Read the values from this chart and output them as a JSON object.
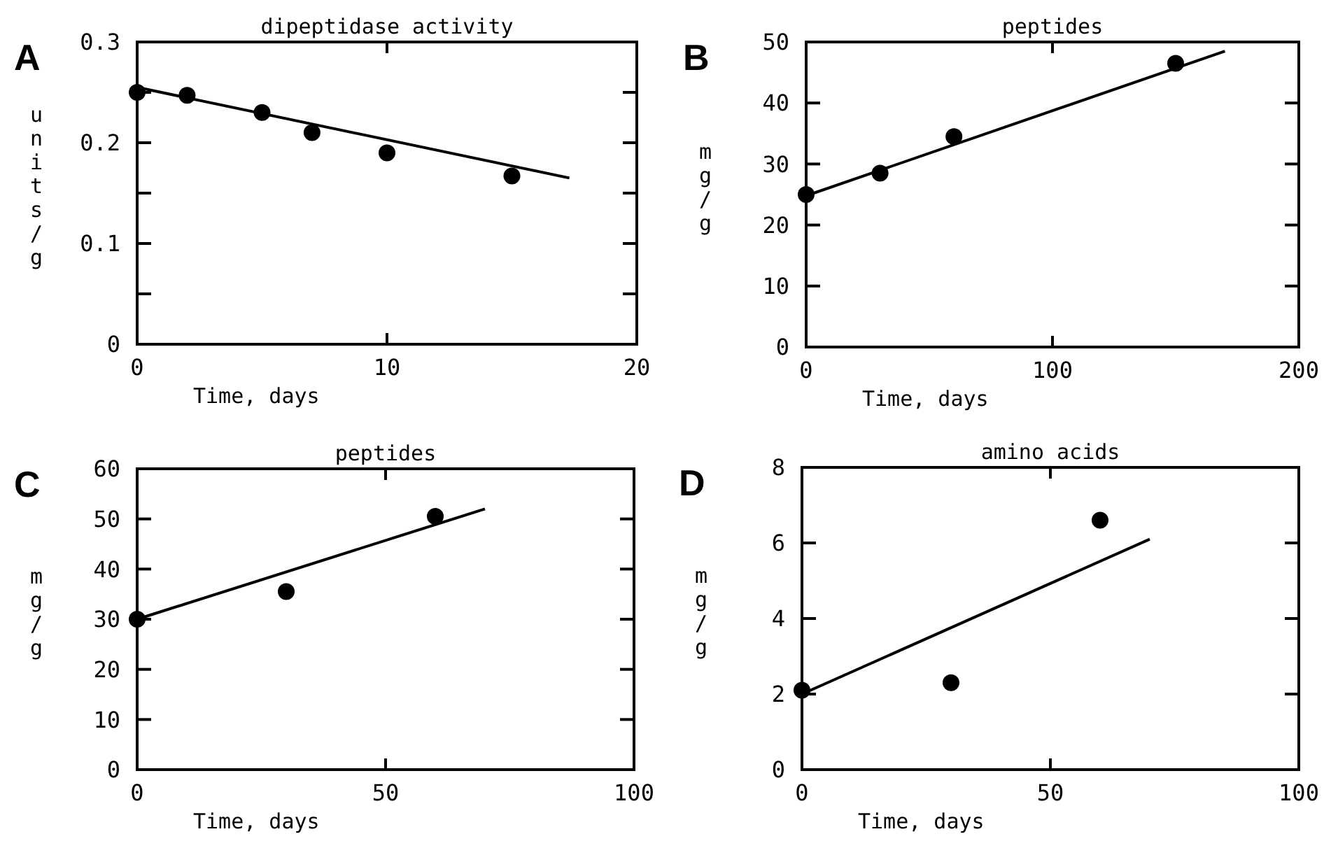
{
  "chart_data": [
    {
      "type": "scatter",
      "title": "dipeptidase activity",
      "xlabel": "Time, days",
      "ylabel": "units/g",
      "annotations": [
        "A"
      ],
      "marker": "circle",
      "grid": false,
      "xlim": [
        0,
        20
      ],
      "xticks": [
        0,
        10,
        20
      ],
      "ylim": [
        0,
        0.3
      ],
      "yticks": [
        0,
        {
          "value": 0.05,
          "label": null
        },
        0.1,
        {
          "value": 0.15,
          "label": null
        },
        0.2,
        {
          "value": 0.25,
          "label": null
        },
        0.3
      ],
      "series": [
        {
          "color": "#000000",
          "x": [
            0,
            2,
            5,
            7,
            10,
            15
          ],
          "values": [
            0.25,
            0.247,
            0.23,
            0.21,
            0.19,
            0.167
          ]
        },
        {
          "type": "line",
          "color": "#000000",
          "marker": "none",
          "line_style": "solid",
          "x": [
            0,
            17.3
          ],
          "values": [
            0.255,
            0.165
          ]
        }
      ]
    },
    {
      "type": "scatter",
      "title": "peptides",
      "xlabel": "Time, days",
      "ylabel": "mg/g",
      "annotations": [
        "B"
      ],
      "marker": "circle",
      "grid": false,
      "xlim": [
        0,
        200
      ],
      "xticks": [
        0,
        100,
        200
      ],
      "ylim": [
        0,
        50
      ],
      "yticks": [
        0,
        10,
        20,
        30,
        40,
        50
      ],
      "series": [
        {
          "color": "#000000",
          "x": [
            0,
            30,
            60,
            150
          ],
          "values": [
            25,
            28.5,
            34.5,
            46.5
          ]
        },
        {
          "type": "line",
          "color": "#000000",
          "marker": "none",
          "line_style": "solid",
          "x": [
            0,
            170
          ],
          "values": [
            24.8,
            48.5
          ]
        }
      ]
    },
    {
      "type": "scatter",
      "title": "peptides",
      "xlabel": "Time, days",
      "ylabel": "mg/g",
      "annotations": [
        "C"
      ],
      "marker": "circle",
      "grid": false,
      "xlim": [
        0,
        100
      ],
      "xticks": [
        0,
        50,
        100
      ],
      "ylim": [
        0,
        60
      ],
      "yticks": [
        0,
        10,
        20,
        30,
        40,
        50,
        60
      ],
      "series": [
        {
          "color": "#000000",
          "x": [
            0,
            30,
            60
          ],
          "values": [
            30,
            35.5,
            50.5
          ]
        },
        {
          "type": "line",
          "color": "#000000",
          "marker": "none",
          "line_style": "solid",
          "x": [
            0,
            70
          ],
          "values": [
            30,
            52
          ]
        }
      ]
    },
    {
      "type": "scatter",
      "title": "amino acids",
      "xlabel": "Time, days",
      "ylabel": "mg/g",
      "annotations": [
        "D"
      ],
      "marker": "circle",
      "grid": false,
      "xlim": [
        0,
        100
      ],
      "xticks": [
        0,
        50,
        100
      ],
      "ylim": [
        0,
        8
      ],
      "yticks": [
        0,
        2,
        4,
        6,
        8
      ],
      "series": [
        {
          "color": "#000000",
          "x": [
            0,
            30,
            60
          ],
          "values": [
            2.1,
            2.3,
            6.6
          ]
        },
        {
          "type": "line",
          "color": "#000000",
          "marker": "none",
          "line_style": "solid",
          "x": [
            0,
            70
          ],
          "values": [
            2,
            6.1
          ]
        }
      ]
    }
  ]
}
